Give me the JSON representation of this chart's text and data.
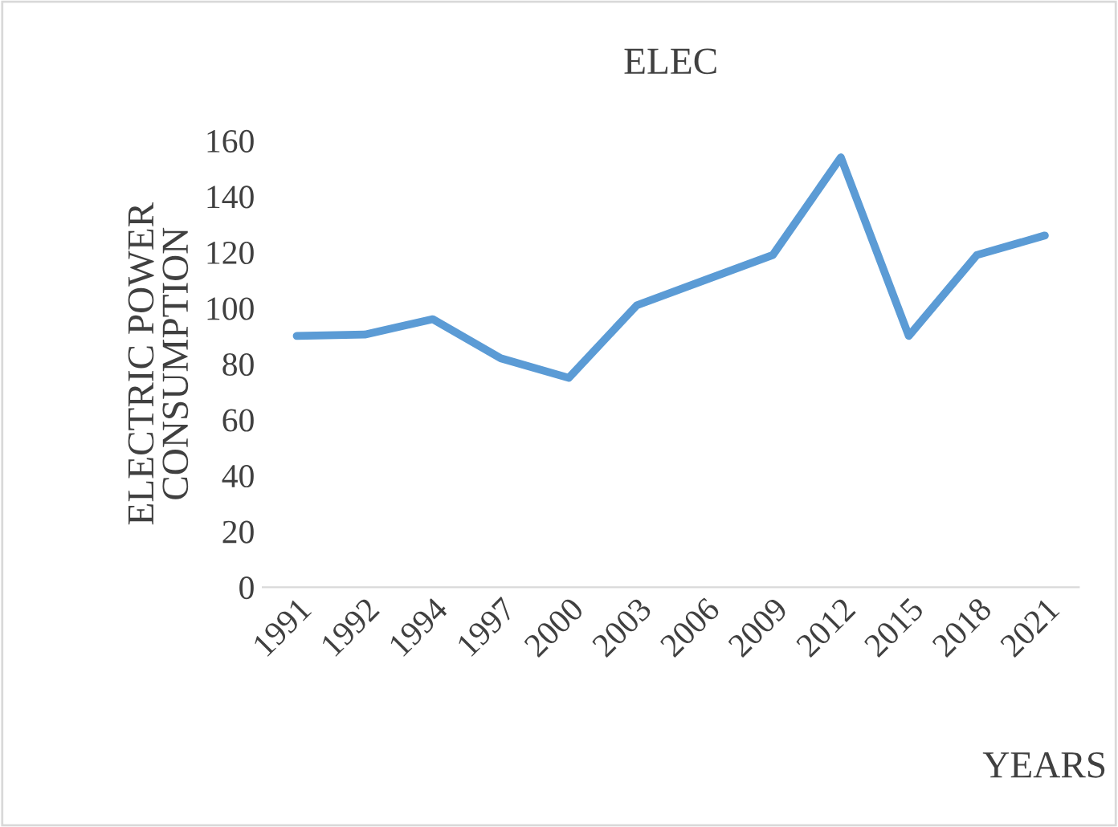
{
  "chart_data": {
    "type": "line",
    "title": "ELEC",
    "xlabel": "YEARS",
    "ylabel": "ELECTRIC POWER\nCONSUMPTION",
    "categories": [
      "1991",
      "1992",
      "1994",
      "1997",
      "2000",
      "2003",
      "2006",
      "2009",
      "2012",
      "2015",
      "2018",
      "2021"
    ],
    "series": [
      {
        "color": "#5b9bd5",
        "values": [
          90,
          90.5,
          96,
          82,
          75,
          101,
          110,
          119,
          154,
          90,
          119,
          126
        ]
      }
    ],
    "ylim": [
      0,
      160
    ],
    "yticks": [
      0,
      20,
      40,
      60,
      80,
      100,
      120,
      140,
      160
    ],
    "grid": false,
    "marker": "none",
    "line_style": "solid"
  }
}
